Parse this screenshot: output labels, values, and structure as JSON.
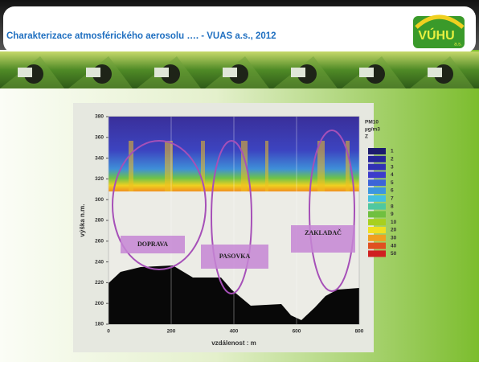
{
  "header": {
    "title": "Charakterizace atmosférického aerosolu …. -  VUAS a.s., 2012",
    "logo": "VÚHU",
    "logo_sub": "a.s."
  },
  "figure": {
    "y_label": "výška n.m.",
    "x_label": "vzdálenost : m",
    "ylim": [
      180,
      380
    ],
    "yticks": [
      180,
      200,
      220,
      240,
      260,
      280,
      300,
      320,
      340,
      360,
      380
    ],
    "xlim": [
      0,
      800
    ],
    "xticks": [
      0,
      200,
      400,
      600,
      800
    ],
    "legend_title": [
      "PM10",
      "µg/m3",
      "Z"
    ],
    "legend_levels": [
      1,
      2,
      3,
      4,
      5,
      6,
      7,
      8,
      9,
      10,
      20,
      30,
      40,
      50
    ],
    "legend_colors": [
      "#1c1c6e",
      "#26269a",
      "#3232b4",
      "#3c3ccc",
      "#3c64d8",
      "#3c96e0",
      "#44c0e0",
      "#50c8a0",
      "#70c040",
      "#a8d020",
      "#f0e020",
      "#f0a020",
      "#e05020",
      "#d02020"
    ],
    "annotations": [
      "DOPRAVA",
      "PASOVKA",
      "ZAKLADAČ"
    ]
  }
}
